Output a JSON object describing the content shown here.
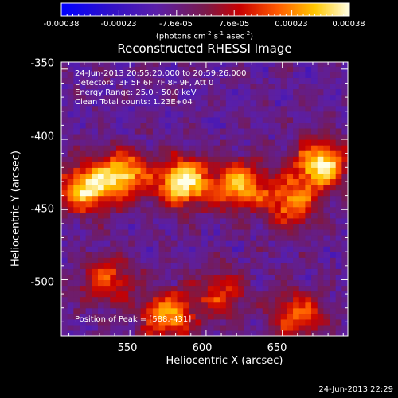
{
  "colorbar": {
    "ticks": [
      "-0.00038",
      "-0.00023",
      "-7.6e-05",
      "7.6e-05",
      "0.00023",
      "0.00038"
    ],
    "unit_prefix": "(photons cm",
    "unit_exp1": "-2",
    "unit_mid": " s",
    "unit_exp2": "-1",
    "unit_mid2": " asec",
    "unit_exp3": "-2",
    "unit_suffix": ")"
  },
  "chart_data": {
    "type": "heatmap",
    "title": "Reconstructed RHESSI Image",
    "xlabel": "Heliocentric X (arcsec)",
    "ylabel": "Heliocentric Y (arcsec)",
    "xlim": [
      505,
      693
    ],
    "ylim": [
      -540,
      -345
    ],
    "x_ticks": [
      "550",
      "600",
      "650"
    ],
    "x_tick_values": [
      550,
      600,
      650
    ],
    "y_ticks": [
      "-350",
      "-400",
      "-450",
      "-500"
    ],
    "y_tick_values": [
      -350,
      -400,
      -450,
      -500
    ],
    "value_range": [
      -0.00038,
      0.00038
    ],
    "peak_position": [
      588,
      -431
    ],
    "bright_regions": [
      {
        "x": 520,
        "y": -435,
        "value": 0.0003
      },
      {
        "x": 545,
        "y": -425,
        "value": 0.00028
      },
      {
        "x": 585,
        "y": -430,
        "value": 0.00038
      },
      {
        "x": 622,
        "y": -432,
        "value": 0.00026
      },
      {
        "x": 655,
        "y": -445,
        "value": 0.0002
      },
      {
        "x": 675,
        "y": -418,
        "value": 0.00034
      },
      {
        "x": 575,
        "y": -525,
        "value": 0.00025
      },
      {
        "x": 535,
        "y": -500,
        "value": 0.00015
      },
      {
        "x": 660,
        "y": -525,
        "value": 0.00015
      },
      {
        "x": 610,
        "y": -510,
        "value": 0.00012
      }
    ],
    "annotations": [
      "24-Jun-2013 20:55:20.000 to 20:59:26.000",
      "Detectors: 3F 5F 6F 7F 8F 9F, Att 0",
      "Energy Range: 25.0 - 50.0 keV",
      "Clean    Total counts: 1.23E+04"
    ],
    "peak_label": "Position of Peak = [588,-431]"
  },
  "timestamp": "24-Jun-2013 22:29"
}
